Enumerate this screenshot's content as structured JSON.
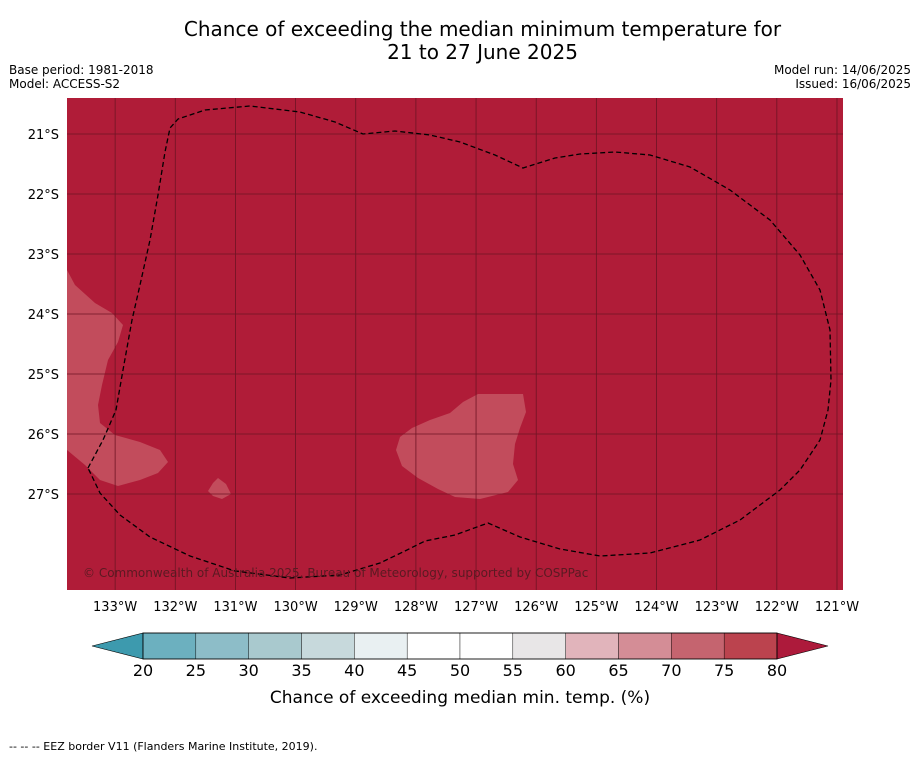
{
  "title": "Chance of exceeding the median minimum temperature for\n21 to 27 June 2025",
  "base_period": "Base period: 1981-2018",
  "model": "Model: ACCESS-S2",
  "model_run": "Model run: 14/06/2025",
  "issued": "Issued: 16/06/2025",
  "copyright": "© Commonwealth of Australia 2025, Bureau of Meteorology, supported by COSPPac",
  "footnote": "--  --  -- EEZ border V11 (Flanders Marine Institute, 2019).",
  "map": {
    "lon_range": [
      -133.8,
      -120.9
    ],
    "lat_range": [
      -28.6,
      -20.4
    ],
    "lon_ticks": [
      "133°W",
      "132°W",
      "131°W",
      "130°W",
      "129°W",
      "128°W",
      "127°W",
      "126°W",
      "125°W",
      "124°W",
      "123°W",
      "122°W",
      "121°W"
    ],
    "lat_ticks": [
      "21°S",
      "22°S",
      "23°S",
      "24°S",
      "25°S",
      "26°S",
      "27°S"
    ],
    "background_category": "80+",
    "colors": {
      "dominant": "#b01c38",
      "patch_70_80": "#c24c5c",
      "grid": "#6e1424",
      "eez": "#000000"
    }
  },
  "colorbar": {
    "label": "Chance of exceeding median min. temp. (%)",
    "ticks": [
      "20",
      "25",
      "30",
      "35",
      "40",
      "45",
      "50",
      "55",
      "60",
      "65",
      "70",
      "75",
      "80"
    ],
    "colors": [
      "#3d9aae",
      "#6cb0bf",
      "#8dbdc8",
      "#a9c9ce",
      "#c7d9dc",
      "#e9f0f2",
      "#ffffff",
      "#ffffff",
      "#e8e6e7",
      "#e1b4bb",
      "#d48d96",
      "#c5646f",
      "#bb434e",
      "#ad1a3b"
    ]
  }
}
